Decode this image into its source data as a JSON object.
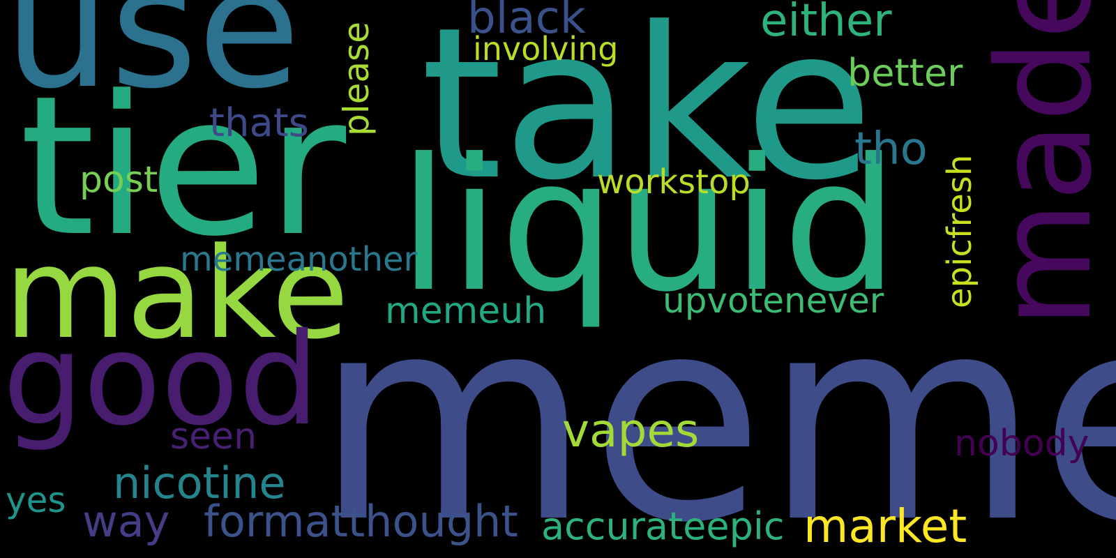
{
  "background_color": "#000000",
  "words": [
    {
      "text": "meme",
      "color": "#3e4c8a",
      "rotated": false
    },
    {
      "text": "take",
      "color": "#1f9a8a",
      "rotated": false
    },
    {
      "text": "tier",
      "color": "#25ab82",
      "rotated": false
    },
    {
      "text": "liquid",
      "color": "#27ad81",
      "rotated": false
    },
    {
      "text": "use",
      "color": "#2c728e",
      "rotated": false
    },
    {
      "text": "made",
      "color": "#46085c",
      "rotated": true
    },
    {
      "text": "make",
      "color": "#95d840",
      "rotated": false
    },
    {
      "text": "good",
      "color": "#481c6e",
      "rotated": false
    },
    {
      "text": "black",
      "color": "#3b518b",
      "rotated": false
    },
    {
      "text": "either",
      "color": "#2eb37c",
      "rotated": false
    },
    {
      "text": "involving",
      "color": "#b8de29",
      "rotated": false
    },
    {
      "text": "please",
      "color": "#a8db34",
      "rotated": true
    },
    {
      "text": "better",
      "color": "#6ccd5a",
      "rotated": false
    },
    {
      "text": "thats",
      "color": "#3e4989",
      "rotated": false
    },
    {
      "text": "tho",
      "color": "#2a768e",
      "rotated": false
    },
    {
      "text": "epicfresh",
      "color": "#c8e020",
      "rotated": true
    },
    {
      "text": "post",
      "color": "#75d054",
      "rotated": false
    },
    {
      "text": "workstop",
      "color": "#bade28",
      "rotated": false
    },
    {
      "text": "memeanother",
      "color": "#2a788e",
      "rotated": false
    },
    {
      "text": "upvotenever",
      "color": "#3dbc74",
      "rotated": false
    },
    {
      "text": "memeuh",
      "color": "#22a884",
      "rotated": false
    },
    {
      "text": "vapes",
      "color": "#a2da37",
      "rotated": false
    },
    {
      "text": "nobody",
      "color": "#440154",
      "rotated": false
    },
    {
      "text": "seen",
      "color": "#482173",
      "rotated": false
    },
    {
      "text": "nicotine",
      "color": "#25858e",
      "rotated": false
    },
    {
      "text": "yes",
      "color": "#1f968b",
      "rotated": false
    },
    {
      "text": "way",
      "color": "#433e85",
      "rotated": false
    },
    {
      "text": "formatthought",
      "color": "#3b528b",
      "rotated": false
    },
    {
      "text": "accurateepic",
      "color": "#2db27d",
      "rotated": false
    },
    {
      "text": "market",
      "color": "#fde725",
      "rotated": false
    }
  ]
}
